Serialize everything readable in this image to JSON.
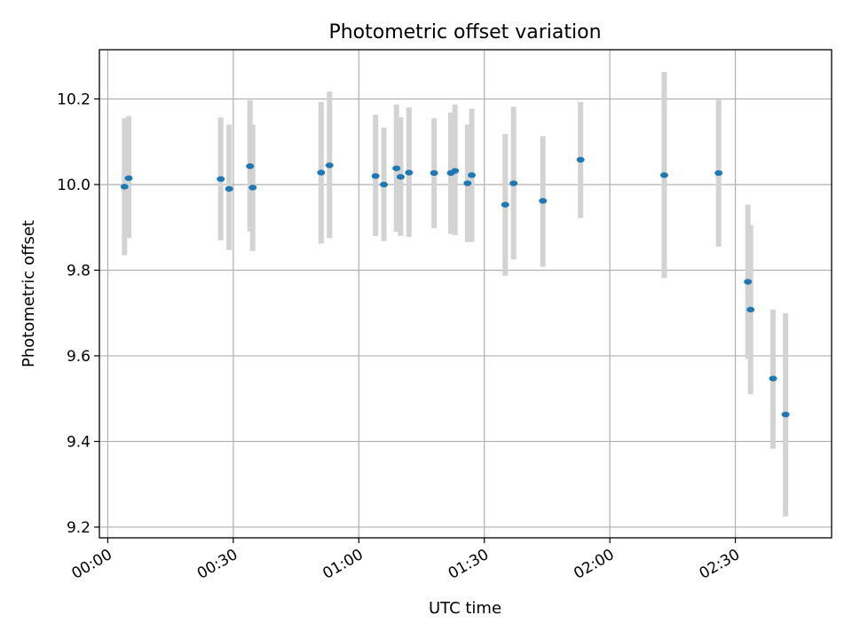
{
  "chart_data": {
    "type": "scatter",
    "title": "Photometric offset variation",
    "xlabel": "UTC time",
    "ylabel": "Photometric offset",
    "x_axis_type": "time",
    "xlim": [
      "23:58",
      "02:53"
    ],
    "ylim": [
      9.175,
      10.315
    ],
    "x_ticks": [
      "00:00",
      "00:30",
      "01:00",
      "01:30",
      "02:00",
      "02:30"
    ],
    "y_ticks": [
      9.2,
      9.4,
      9.6,
      9.8,
      10.0,
      10.2
    ],
    "y_tick_labels": [
      "9.2",
      "9.4",
      "9.6",
      "9.8",
      "10.0",
      "10.2"
    ],
    "grid": true,
    "colors": {
      "point": "#1f77b4",
      "errorbar": "#d3d3d3"
    },
    "points": [
      {
        "x": "00:04",
        "y": 9.995,
        "ylo": 9.835,
        "yhi": 10.155
      },
      {
        "x": "00:05",
        "y": 10.015,
        "ylo": 9.875,
        "yhi": 10.16
      },
      {
        "x": "00:27",
        "y": 10.013,
        "ylo": 9.87,
        "yhi": 10.157
      },
      {
        "x": "00:29",
        "y": 9.99,
        "ylo": 9.847,
        "yhi": 10.14
      },
      {
        "x": "00:34",
        "y": 10.043,
        "ylo": 9.89,
        "yhi": 10.197
      },
      {
        "x": "00:34",
        "y": 9.993,
        "ylo": 9.845,
        "yhi": 10.14
      },
      {
        "x": "00:51",
        "y": 10.028,
        "ylo": 9.862,
        "yhi": 10.193
      },
      {
        "x": "00:53",
        "y": 10.045,
        "ylo": 9.875,
        "yhi": 10.217
      },
      {
        "x": "01:04",
        "y": 10.02,
        "ylo": 9.88,
        "yhi": 10.163
      },
      {
        "x": "01:06",
        "y": 10.0,
        "ylo": 9.868,
        "yhi": 10.133
      },
      {
        "x": "01:09",
        "y": 10.038,
        "ylo": 9.89,
        "yhi": 10.187
      },
      {
        "x": "01:10",
        "y": 10.018,
        "ylo": 9.88,
        "yhi": 10.157
      },
      {
        "x": "01:12",
        "y": 10.028,
        "ylo": 9.878,
        "yhi": 10.18
      },
      {
        "x": "01:18",
        "y": 10.027,
        "ylo": 9.898,
        "yhi": 10.155
      },
      {
        "x": "01:22",
        "y": 10.027,
        "ylo": 9.885,
        "yhi": 10.168
      },
      {
        "x": "01:23",
        "y": 10.032,
        "ylo": 9.882,
        "yhi": 10.187
      },
      {
        "x": "01:26",
        "y": 10.003,
        "ylo": 9.866,
        "yhi": 10.14
      },
      {
        "x": "01:27",
        "y": 10.022,
        "ylo": 9.866,
        "yhi": 10.177
      },
      {
        "x": "01:35",
        "y": 9.953,
        "ylo": 9.787,
        "yhi": 10.118
      },
      {
        "x": "01:37",
        "y": 10.003,
        "ylo": 9.825,
        "yhi": 10.182
      },
      {
        "x": "01:44",
        "y": 9.962,
        "ylo": 9.808,
        "yhi": 10.113
      },
      {
        "x": "01:53",
        "y": 10.058,
        "ylo": 9.922,
        "yhi": 10.193
      },
      {
        "x": "02:13",
        "y": 10.022,
        "ylo": 9.782,
        "yhi": 10.263
      },
      {
        "x": "02:26",
        "y": 10.027,
        "ylo": 9.855,
        "yhi": 10.198
      },
      {
        "x": "02:33",
        "y": 9.773,
        "ylo": 9.593,
        "yhi": 9.953
      },
      {
        "x": "02:33",
        "y": 9.708,
        "ylo": 9.51,
        "yhi": 9.905
      },
      {
        "x": "02:39",
        "y": 9.547,
        "ylo": 9.383,
        "yhi": 9.708
      },
      {
        "x": "02:42",
        "y": 9.463,
        "ylo": 9.225,
        "yhi": 9.7
      }
    ]
  }
}
